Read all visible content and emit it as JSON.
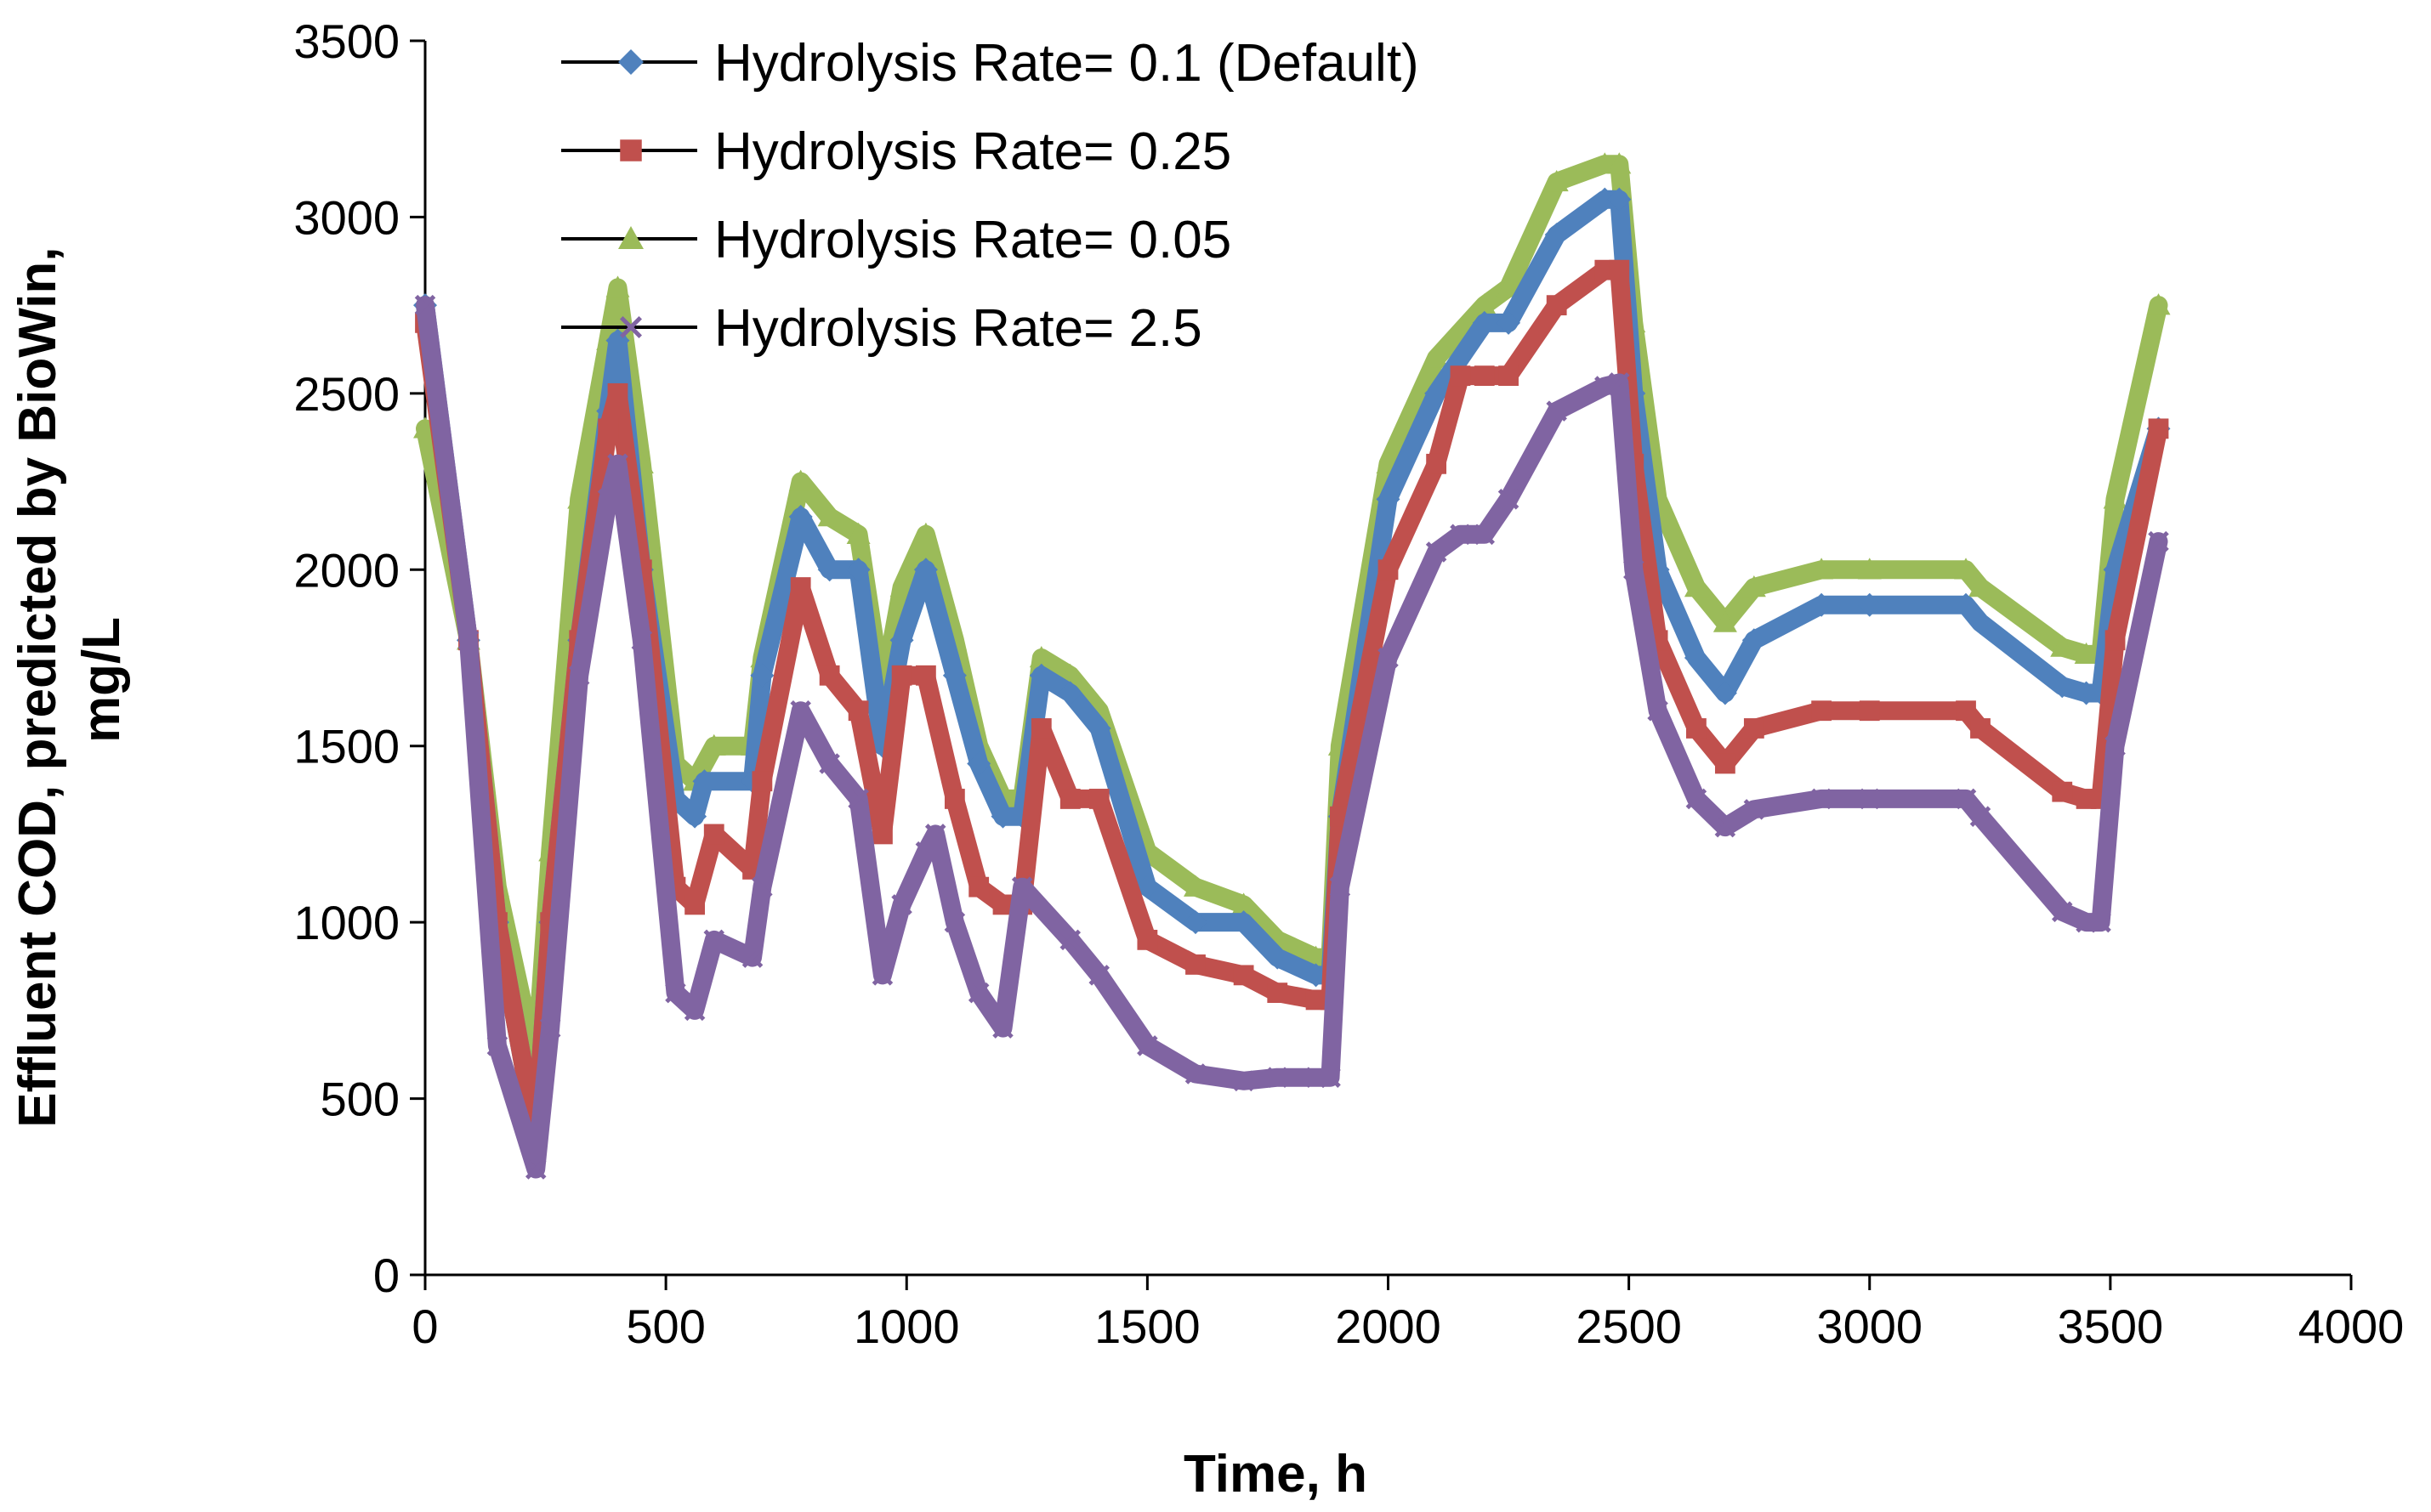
{
  "chart_data": {
    "type": "line",
    "title": "",
    "xlabel": "Time, h",
    "ylabel_lines": [
      "Effluent COD,  predicted by BioWin,",
      "mg/L"
    ],
    "xlim": [
      0,
      4000
    ],
    "ylim": [
      0,
      3500
    ],
    "x_ticks": [
      0,
      500,
      1000,
      1500,
      2000,
      2500,
      3000,
      3500,
      4000
    ],
    "y_ticks": [
      0,
      500,
      1000,
      1500,
      2000,
      2500,
      3000,
      3500
    ],
    "grid": false,
    "legend_position": "top-center",
    "series": [
      {
        "name": "Hydrolysis Rate= 0.1 (Default)",
        "color": "#4F81BD",
        "marker": "diamond",
        "points": [
          [
            0,
            2750
          ],
          [
            90,
            1800
          ],
          [
            150,
            1000
          ],
          [
            230,
            400
          ],
          [
            260,
            1000
          ],
          [
            320,
            1800
          ],
          [
            380,
            2450
          ],
          [
            400,
            2650
          ],
          [
            450,
            2000
          ],
          [
            520,
            1350
          ],
          [
            560,
            1300
          ],
          [
            580,
            1400
          ],
          [
            680,
            1400
          ],
          [
            700,
            1700
          ],
          [
            780,
            2150
          ],
          [
            840,
            2000
          ],
          [
            900,
            2000
          ],
          [
            950,
            1500
          ],
          [
            990,
            1800
          ],
          [
            1040,
            2000
          ],
          [
            1100,
            1700
          ],
          [
            1150,
            1450
          ],
          [
            1200,
            1300
          ],
          [
            1240,
            1300
          ],
          [
            1280,
            1700
          ],
          [
            1340,
            1650
          ],
          [
            1400,
            1550
          ],
          [
            1500,
            1100
          ],
          [
            1600,
            1000
          ],
          [
            1700,
            1000
          ],
          [
            1770,
            900
          ],
          [
            1850,
            850
          ],
          [
            1880,
            850
          ],
          [
            1900,
            1300
          ],
          [
            2000,
            2200
          ],
          [
            2100,
            2500
          ],
          [
            2200,
            2700
          ],
          [
            2250,
            2700
          ],
          [
            2350,
            2950
          ],
          [
            2450,
            3050
          ],
          [
            2480,
            3050
          ],
          [
            2510,
            2500
          ],
          [
            2560,
            2000
          ],
          [
            2640,
            1750
          ],
          [
            2700,
            1650
          ],
          [
            2760,
            1800
          ],
          [
            2900,
            1900
          ],
          [
            3000,
            1900
          ],
          [
            3200,
            1900
          ],
          [
            3230,
            1850
          ],
          [
            3400,
            1670
          ],
          [
            3450,
            1650
          ],
          [
            3480,
            1650
          ],
          [
            3510,
            2000
          ],
          [
            3600,
            2400
          ]
        ]
      },
      {
        "name": "Hydrolysis Rate= 0.25",
        "color": "#C0504D",
        "marker": "square",
        "points": [
          [
            0,
            2700
          ],
          [
            90,
            1800
          ],
          [
            150,
            1000
          ],
          [
            230,
            400
          ],
          [
            260,
            1000
          ],
          [
            320,
            1800
          ],
          [
            380,
            2400
          ],
          [
            400,
            2500
          ],
          [
            450,
            2000
          ],
          [
            520,
            1100
          ],
          [
            560,
            1050
          ],
          [
            600,
            1250
          ],
          [
            680,
            1150
          ],
          [
            700,
            1400
          ],
          [
            780,
            1950
          ],
          [
            840,
            1700
          ],
          [
            900,
            1600
          ],
          [
            950,
            1250
          ],
          [
            990,
            1700
          ],
          [
            1040,
            1700
          ],
          [
            1100,
            1350
          ],
          [
            1150,
            1100
          ],
          [
            1200,
            1050
          ],
          [
            1240,
            1050
          ],
          [
            1280,
            1550
          ],
          [
            1340,
            1350
          ],
          [
            1400,
            1350
          ],
          [
            1500,
            950
          ],
          [
            1600,
            880
          ],
          [
            1700,
            850
          ],
          [
            1770,
            800
          ],
          [
            1850,
            780
          ],
          [
            1880,
            780
          ],
          [
            1900,
            1300
          ],
          [
            2000,
            2000
          ],
          [
            2100,
            2300
          ],
          [
            2150,
            2550
          ],
          [
            2200,
            2550
          ],
          [
            2250,
            2550
          ],
          [
            2350,
            2750
          ],
          [
            2450,
            2850
          ],
          [
            2480,
            2850
          ],
          [
            2510,
            2300
          ],
          [
            2560,
            1800
          ],
          [
            2640,
            1550
          ],
          [
            2700,
            1450
          ],
          [
            2760,
            1550
          ],
          [
            2900,
            1600
          ],
          [
            3000,
            1600
          ],
          [
            3200,
            1600
          ],
          [
            3230,
            1550
          ],
          [
            3400,
            1370
          ],
          [
            3450,
            1350
          ],
          [
            3480,
            1350
          ],
          [
            3510,
            1800
          ],
          [
            3600,
            2400
          ]
        ]
      },
      {
        "name": "Hydrolysis Rate= 0.05",
        "color": "#9BBB59",
        "marker": "triangle",
        "points": [
          [
            0,
            2400
          ],
          [
            90,
            1800
          ],
          [
            150,
            1100
          ],
          [
            230,
            600
          ],
          [
            260,
            1200
          ],
          [
            320,
            2200
          ],
          [
            380,
            2650
          ],
          [
            400,
            2800
          ],
          [
            450,
            2300
          ],
          [
            520,
            1450
          ],
          [
            560,
            1400
          ],
          [
            600,
            1500
          ],
          [
            680,
            1500
          ],
          [
            700,
            1750
          ],
          [
            780,
            2250
          ],
          [
            840,
            2150
          ],
          [
            900,
            2100
          ],
          [
            950,
            1650
          ],
          [
            990,
            1950
          ],
          [
            1040,
            2100
          ],
          [
            1100,
            1800
          ],
          [
            1150,
            1500
          ],
          [
            1200,
            1350
          ],
          [
            1240,
            1350
          ],
          [
            1280,
            1750
          ],
          [
            1340,
            1700
          ],
          [
            1400,
            1600
          ],
          [
            1500,
            1200
          ],
          [
            1600,
            1100
          ],
          [
            1700,
            1050
          ],
          [
            1770,
            950
          ],
          [
            1850,
            900
          ],
          [
            1880,
            900
          ],
          [
            1900,
            1500
          ],
          [
            2000,
            2300
          ],
          [
            2100,
            2600
          ],
          [
            2200,
            2750
          ],
          [
            2250,
            2800
          ],
          [
            2350,
            3100
          ],
          [
            2450,
            3150
          ],
          [
            2480,
            3150
          ],
          [
            2510,
            2700
          ],
          [
            2560,
            2200
          ],
          [
            2640,
            1950
          ],
          [
            2700,
            1850
          ],
          [
            2760,
            1950
          ],
          [
            2900,
            2000
          ],
          [
            3000,
            2000
          ],
          [
            3200,
            2000
          ],
          [
            3230,
            1950
          ],
          [
            3400,
            1780
          ],
          [
            3450,
            1760
          ],
          [
            3480,
            1760
          ],
          [
            3510,
            2200
          ],
          [
            3600,
            2750
          ]
        ]
      },
      {
        "name": "Hydrolysis Rate= 2.5",
        "color": "#8064A2",
        "marker": "x",
        "points": [
          [
            0,
            2750
          ],
          [
            90,
            1800
          ],
          [
            150,
            650
          ],
          [
            230,
            300
          ],
          [
            260,
            700
          ],
          [
            320,
            1700
          ],
          [
            380,
            2200
          ],
          [
            400,
            2300
          ],
          [
            450,
            1800
          ],
          [
            520,
            800
          ],
          [
            560,
            750
          ],
          [
            600,
            950
          ],
          [
            680,
            900
          ],
          [
            700,
            1100
          ],
          [
            780,
            1600
          ],
          [
            840,
            1450
          ],
          [
            900,
            1350
          ],
          [
            950,
            850
          ],
          [
            990,
            1050
          ],
          [
            1040,
            1200
          ],
          [
            1060,
            1250
          ],
          [
            1100,
            1000
          ],
          [
            1150,
            800
          ],
          [
            1200,
            700
          ],
          [
            1240,
            1100
          ],
          [
            1340,
            950
          ],
          [
            1400,
            850
          ],
          [
            1500,
            650
          ],
          [
            1600,
            570
          ],
          [
            1700,
            550
          ],
          [
            1770,
            560
          ],
          [
            1850,
            560
          ],
          [
            1880,
            560
          ],
          [
            1900,
            1100
          ],
          [
            2000,
            1750
          ],
          [
            2100,
            2050
          ],
          [
            2150,
            2100
          ],
          [
            2200,
            2100
          ],
          [
            2250,
            2200
          ],
          [
            2350,
            2450
          ],
          [
            2450,
            2520
          ],
          [
            2480,
            2530
          ],
          [
            2510,
            2000
          ],
          [
            2560,
            1600
          ],
          [
            2640,
            1350
          ],
          [
            2700,
            1270
          ],
          [
            2760,
            1320
          ],
          [
            2900,
            1350
          ],
          [
            3000,
            1350
          ],
          [
            3200,
            1350
          ],
          [
            3230,
            1300
          ],
          [
            3400,
            1030
          ],
          [
            3450,
            1000
          ],
          [
            3480,
            1000
          ],
          [
            3510,
            1500
          ],
          [
            3600,
            2080
          ]
        ]
      }
    ]
  }
}
